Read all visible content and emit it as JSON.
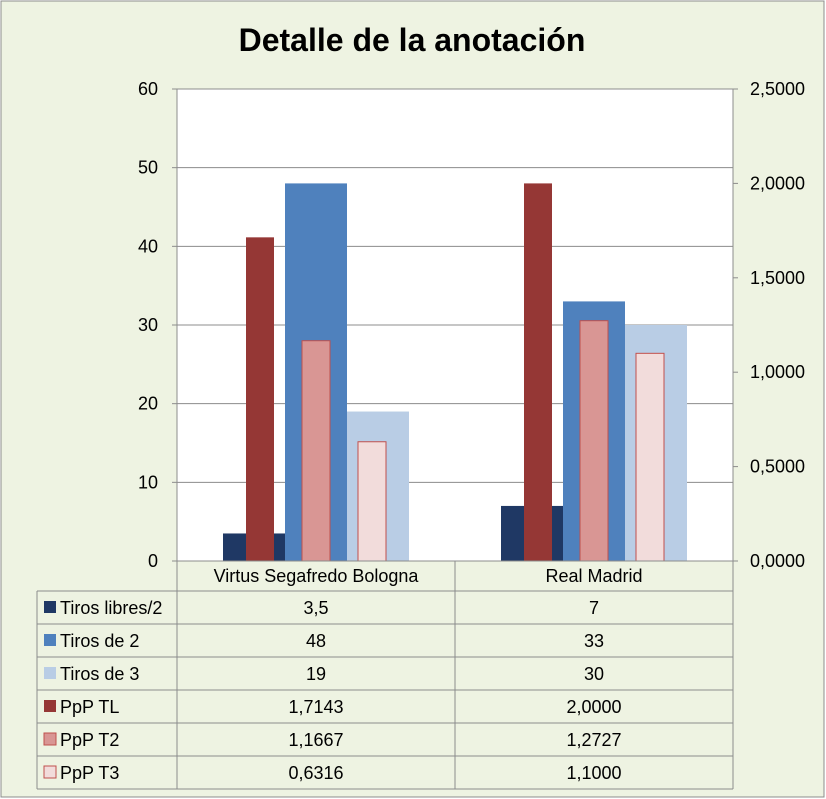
{
  "chart_data": {
    "type": "bar",
    "title": "Detalle de la anotación",
    "categories": [
      "Virtus Segafredo Bologna",
      "Real Madrid"
    ],
    "y_left": {
      "lim": [
        0,
        60
      ],
      "ticks": [
        "0",
        "10",
        "20",
        "30",
        "40",
        "50",
        "60"
      ]
    },
    "y_right": {
      "lim": [
        0,
        2.5
      ],
      "ticks": [
        "0,0000",
        "0,5000",
        "1,0000",
        "1,5000",
        "2,0000",
        "2,5000"
      ]
    },
    "grid": true,
    "legend": "data-table",
    "series": [
      {
        "name": "Tiros libres/2",
        "axis": "left",
        "color": "#1f3864",
        "values": [
          3.5,
          7
        ],
        "labels": [
          "3,5",
          "7"
        ]
      },
      {
        "name": "Tiros de 2",
        "axis": "left",
        "color": "#4f81bd",
        "values": [
          48,
          33
        ],
        "labels": [
          "48",
          "33"
        ]
      },
      {
        "name": "Tiros de 3",
        "axis": "left",
        "color": "#b9cde5",
        "values": [
          19,
          30
        ],
        "labels": [
          "19",
          "30"
        ]
      },
      {
        "name": "PpP TL",
        "axis": "right",
        "color": "#953735",
        "values": [
          1.7143,
          2.0
        ],
        "labels": [
          "1,7143",
          "2,0000"
        ]
      },
      {
        "name": "PpP T2",
        "axis": "right",
        "color": "#d99694",
        "values": [
          1.1667,
          1.2727
        ],
        "labels": [
          "1,1667",
          "1,2727"
        ]
      },
      {
        "name": "PpP T3",
        "axis": "right",
        "color": "#f2dcdb",
        "values": [
          0.6316,
          1.1
        ],
        "labels": [
          "0,6316",
          "1,1000"
        ]
      }
    ]
  }
}
